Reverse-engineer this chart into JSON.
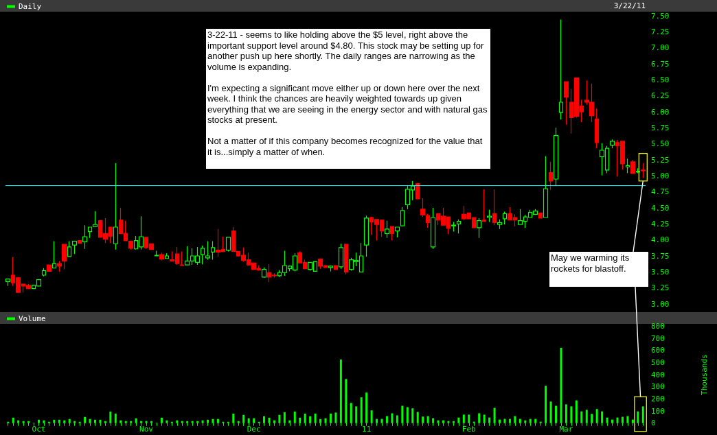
{
  "chart_data": [
    {
      "type": "candlestick",
      "legend": "top left",
      "subtitle": "3/22/11",
      "tick_labels": "y",
      "grid": false,
      "colors": [
        "#00ff00",
        "#ff0000"
      ],
      "categories": [
        null,
        null,
        null,
        null,
        null,
        null,
        null,
        null,
        null,
        null,
        null,
        null,
        null,
        null,
        null,
        null,
        null,
        null,
        null,
        null,
        null,
        null,
        null,
        null,
        null,
        null,
        null,
        null,
        null,
        null,
        null,
        null,
        null,
        null,
        null,
        null,
        null,
        null,
        null,
        null,
        null,
        null,
        null,
        null,
        null,
        null,
        null,
        null,
        null,
        null,
        null,
        null,
        null,
        null,
        null,
        null,
        null,
        null,
        null,
        null,
        null,
        null,
        null,
        null,
        null,
        null,
        null,
        null,
        null,
        null,
        null,
        null,
        null,
        null,
        null,
        null,
        null,
        null,
        null,
        null,
        null,
        null,
        null,
        null,
        null,
        null,
        null,
        null,
        null,
        null,
        null,
        null,
        null,
        null,
        null,
        null,
        null,
        null,
        null,
        null,
        null,
        null,
        null,
        null,
        null,
        null,
        null,
        null,
        null,
        null,
        null,
        null,
        null,
        null,
        null,
        null,
        null,
        null,
        null,
        null,
        null,
        null,
        null,
        null,
        null
      ],
      "series": [
        {
          "name": "Daily",
          "ohlc": [
            [
              3.35,
              3.39,
              3.28,
              3.39
            ],
            [
              3.45,
              3.73,
              3.28,
              3.33
            ],
            [
              3.41,
              3.42,
              3.18,
              3.18
            ],
            [
              3.31,
              3.32,
              3.18,
              3.28
            ],
            [
              3.29,
              3.31,
              3.24,
              3.24
            ],
            [
              3.24,
              3.3,
              3.24,
              3.29
            ],
            [
              3.28,
              3.38,
              3.28,
              3.38
            ],
            [
              3.45,
              3.56,
              3.43,
              3.52
            ],
            [
              3.61,
              3.61,
              3.51,
              3.51
            ],
            [
              3.56,
              3.98,
              3.56,
              3.63
            ],
            [
              3.63,
              3.67,
              3.5,
              3.59
            ],
            [
              3.93,
              3.93,
              3.54,
              3.67
            ],
            [
              3.74,
              3.98,
              3.74,
              3.89
            ],
            [
              3.92,
              3.98,
              3.78,
              3.98
            ],
            [
              3.99,
              3.99,
              3.94,
              3.95
            ],
            [
              3.97,
              4.23,
              3.86,
              4.05
            ],
            [
              4.13,
              4.2,
              4.03,
              4.2
            ],
            [
              4.21,
              4.45,
              4.21,
              4.24
            ],
            [
              4.3,
              4.3,
              4.04,
              4.04
            ],
            [
              4.1,
              4.34,
              3.95,
              4.01
            ],
            [
              4.2,
              4.2,
              3.95,
              4.06
            ],
            [
              3.94,
              5.2,
              3.85,
              4.2
            ],
            [
              4.31,
              4.5,
              4.09,
              4.1
            ],
            [
              4.1,
              4.3,
              3.99,
              3.99
            ],
            [
              3.98,
              3.98,
              3.85,
              3.87
            ],
            [
              3.86,
              4.06,
              3.85,
              3.99
            ],
            [
              3.89,
              4.37,
              3.85,
              4.05
            ],
            [
              4.04,
              4.04,
              3.86,
              3.88
            ],
            [
              3.94,
              3.94,
              3.85,
              3.85
            ],
            [
              3.75,
              3.83,
              3.75,
              3.76
            ],
            [
              3.77,
              3.8,
              3.68,
              3.7
            ],
            [
              3.71,
              3.79,
              3.71,
              3.75
            ],
            [
              3.69,
              3.82,
              3.67,
              3.67
            ],
            [
              3.78,
              3.89,
              3.61,
              3.63
            ],
            [
              3.61,
              3.82,
              3.6,
              3.6
            ],
            [
              3.61,
              3.9,
              3.61,
              3.67
            ],
            [
              3.67,
              3.87,
              3.61,
              3.75
            ],
            [
              3.65,
              3.89,
              3.61,
              3.75
            ],
            [
              3.77,
              3.91,
              3.62,
              3.87
            ],
            [
              3.72,
              3.98,
              3.69,
              3.75
            ],
            [
              3.81,
              3.98,
              3.69,
              3.88
            ],
            [
              3.84,
              4.17,
              3.74,
              3.81
            ],
            [
              3.85,
              4.05,
              3.81,
              3.82
            ],
            [
              3.84,
              4.04,
              3.82,
              4.04
            ],
            [
              4.14,
              4.2,
              3.82,
              3.82
            ],
            [
              3.82,
              3.82,
              3.74,
              3.75
            ],
            [
              3.76,
              3.88,
              3.66,
              3.68
            ],
            [
              3.69,
              3.8,
              3.6,
              3.61
            ],
            [
              3.64,
              3.64,
              3.54,
              3.54
            ],
            [
              3.55,
              3.6,
              3.52,
              3.53
            ],
            [
              3.42,
              3.57,
              3.41,
              3.54
            ],
            [
              3.49,
              3.62,
              3.34,
              3.42
            ],
            [
              3.45,
              3.48,
              3.41,
              3.44
            ],
            [
              3.44,
              3.53,
              3.42,
              3.49
            ],
            [
              3.49,
              3.83,
              3.44,
              3.6
            ],
            [
              3.55,
              3.6,
              3.51,
              3.59
            ],
            [
              3.53,
              3.79,
              3.51,
              3.75
            ],
            [
              3.8,
              3.82,
              3.64,
              3.64
            ],
            [
              3.65,
              3.69,
              3.54,
              3.55
            ],
            [
              3.54,
              3.65,
              3.52,
              3.65
            ],
            [
              3.51,
              3.66,
              3.51,
              3.66
            ],
            [
              3.7,
              3.71,
              3.55,
              3.59
            ],
            [
              3.6,
              3.6,
              3.57,
              3.57
            ],
            [
              3.57,
              3.6,
              3.51,
              3.59
            ],
            [
              3.6,
              3.6,
              3.54,
              3.54
            ],
            [
              3.58,
              3.94,
              3.55,
              3.88
            ],
            [
              3.93,
              3.94,
              3.46,
              3.5
            ],
            [
              3.54,
              3.72,
              3.52,
              3.69
            ],
            [
              3.66,
              3.8,
              3.59,
              3.68
            ],
            [
              3.5,
              3.95,
              3.5,
              3.75
            ],
            [
              3.92,
              4.38,
              3.74,
              4.34
            ],
            [
              4.35,
              4.36,
              4.08,
              4.28
            ],
            [
              4.32,
              4.32,
              3.99,
              4.24
            ],
            [
              4.31,
              4.31,
              4.05,
              4.14
            ],
            [
              4.1,
              4.3,
              4.03,
              4.17
            ],
            [
              4.21,
              4.21,
              3.99,
              4.1
            ],
            [
              4.14,
              4.2,
              4.04,
              4.2
            ],
            [
              4.22,
              4.51,
              4.21,
              4.46
            ],
            [
              4.55,
              4.85,
              4.48,
              4.79
            ],
            [
              4.78,
              4.92,
              4.62,
              4.84
            ],
            [
              4.88,
              4.88,
              4.64,
              4.64
            ],
            [
              4.48,
              4.65,
              4.36,
              4.39
            ],
            [
              4.38,
              4.41,
              4.19,
              4.27
            ],
            [
              3.89,
              4.5,
              3.86,
              4.35
            ],
            [
              4.41,
              4.41,
              4.23,
              4.31
            ],
            [
              4.37,
              4.5,
              4.23,
              4.23
            ],
            [
              4.36,
              4.36,
              4.09,
              4.18
            ],
            [
              4.22,
              4.28,
              4.13,
              4.23
            ],
            [
              4.25,
              4.32,
              4.1,
              4.29
            ],
            [
              4.4,
              4.53,
              4.31,
              4.33
            ],
            [
              4.42,
              4.42,
              4.33,
              4.33
            ],
            [
              4.35,
              4.35,
              4.19,
              4.19
            ],
            [
              4.19,
              4.34,
              4.03,
              4.3
            ],
            [
              4.31,
              4.79,
              4.29,
              4.29
            ],
            [
              4.35,
              4.47,
              4.28,
              4.37
            ],
            [
              4.41,
              4.79,
              4.23,
              4.27
            ],
            [
              4.24,
              4.32,
              4.17,
              4.27
            ],
            [
              4.33,
              4.44,
              4.24,
              4.41
            ],
            [
              4.41,
              4.51,
              4.31,
              4.31
            ],
            [
              4.35,
              4.4,
              4.21,
              4.31
            ],
            [
              4.24,
              4.48,
              4.24,
              4.3
            ],
            [
              4.29,
              4.39,
              4.19,
              4.36
            ],
            [
              4.35,
              4.47,
              4.35,
              4.43
            ],
            [
              4.4,
              4.48,
              4.39,
              4.45
            ],
            [
              4.42,
              4.42,
              4.34,
              4.34
            ],
            [
              4.35,
              5.31,
              4.35,
              4.8
            ],
            [
              5.05,
              5.22,
              4.78,
              4.92
            ],
            [
              4.95,
              5.75,
              4.85,
              5.63
            ],
            [
              5.99,
              7.44,
              5.88,
              6.15
            ],
            [
              6.47,
              6.47,
              5.8,
              6.23
            ],
            [
              6.15,
              6.36,
              5.66,
              5.91
            ],
            [
              6.53,
              6.53,
              5.91,
              5.93
            ],
            [
              6.09,
              6.19,
              5.84,
              6.0
            ],
            [
              6.18,
              6.49,
              6.11,
              6.15
            ],
            [
              6.15,
              6.44,
              5.84,
              5.94
            ],
            [
              5.89,
              6.05,
              5.43,
              5.52
            ],
            [
              5.3,
              5.51,
              5.01,
              5.4
            ],
            [
              5.09,
              5.47,
              5.04,
              5.43
            ],
            [
              5.48,
              5.57,
              5.43,
              5.54
            ],
            [
              5.52,
              5.56,
              4.99,
              5.47
            ],
            [
              5.54,
              5.54,
              5.1,
              5.19
            ],
            [
              5.14,
              5.27,
              5.04,
              5.16
            ],
            [
              5.22,
              5.25,
              5.04,
              5.04
            ],
            [
              5.06,
              5.12,
              5.04,
              5.07
            ],
            [
              5.09,
              5.2,
              4.97,
              5.08
            ]
          ]
        }
      ],
      "ylim": [
        3,
        7.5
      ],
      "yticks": [
        {
          "value": 3,
          "label": "3.00"
        },
        {
          "value": 3.25,
          "label": "3.25"
        },
        {
          "value": 3.5,
          "label": "3.50"
        },
        {
          "value": 3.75,
          "label": "3.75"
        },
        {
          "value": 4,
          "label": "4.00"
        },
        {
          "value": 4.25,
          "label": "4.25"
        },
        {
          "value": 4.5,
          "label": "4.50"
        },
        {
          "value": 4.75,
          "label": "4.75"
        },
        {
          "value": 5,
          "label": "5.00"
        },
        {
          "value": 5.25,
          "label": "5.25"
        },
        {
          "value": 5.5,
          "label": "5.50"
        },
        {
          "value": 5.75,
          "label": "5.75"
        },
        {
          "value": 6,
          "label": "6.00"
        },
        {
          "value": 6.25,
          "label": "6.25"
        },
        {
          "value": 6.5,
          "label": "6.50"
        },
        {
          "value": 6.75,
          "label": "6.75"
        },
        {
          "value": 7,
          "label": "7.00"
        },
        {
          "value": 7.25,
          "label": "7.25"
        },
        {
          "value": 7.5,
          "label": "7.50"
        }
      ],
      "ref_lines": [
        {
          "axis": "y",
          "value": 4.85,
          "color": "#00ffff"
        }
      ],
      "annotations": [
        "3-22-11 - seems to like holding above the $5 level, right above the important support level around $4.80. This stock may be setting up for another push up here shortly. The daily ranges are narrowing as the volume is expanding.\n\nI'm expecting a significant move either up or down here over the next week. I think the chances are heavily weighted towards up given everything that we are seeing in the energy sector and with natural gas stocks at present.\n\nNot a matter of if this company becomes recognized for the value that it is...simply a matter of when.",
        "May we warming its rockets for blastoff."
      ]
    },
    {
      "type": "bar",
      "legend": "top left",
      "ylabel": "Thousands",
      "grid": false,
      "categories": [
        null,
        null,
        null,
        null,
        null,
        null,
        "Oct",
        null,
        null,
        null,
        null,
        null,
        null,
        null,
        null,
        null,
        null,
        null,
        null,
        null,
        null,
        null,
        null,
        null,
        null,
        null,
        null,
        "Nov",
        null,
        null,
        null,
        null,
        null,
        null,
        null,
        null,
        null,
        null,
        null,
        null,
        null,
        null,
        null,
        null,
        null,
        null,
        null,
        null,
        "Dec",
        null,
        null,
        null,
        null,
        null,
        null,
        null,
        null,
        null,
        null,
        null,
        null,
        null,
        null,
        null,
        null,
        null,
        null,
        null,
        null,
        null,
        "11",
        null,
        null,
        null,
        null,
        null,
        null,
        null,
        null,
        null,
        null,
        null,
        null,
        null,
        null,
        null,
        null,
        null,
        null,
        null,
        "Feb",
        null,
        null,
        null,
        null,
        null,
        null,
        null,
        null,
        null,
        null,
        null,
        null,
        null,
        null,
        null,
        null,
        null,
        null,
        "Mar",
        null,
        null,
        null,
        null,
        null,
        null,
        null,
        null,
        null,
        null,
        null,
        null,
        null,
        null,
        null
      ],
      "series": [
        {
          "name": "Volume",
          "color": "#00ff00",
          "values": [
            11,
            45,
            23,
            17,
            17,
            3,
            28,
            23,
            11,
            28,
            28,
            23,
            34,
            17,
            11,
            51,
            34,
            28,
            28,
            17,
            96,
            79,
            23,
            17,
            17,
            40,
            17,
            17,
            17,
            3,
            45,
            23,
            11,
            23,
            17,
            17,
            17,
            17,
            23,
            28,
            34,
            34,
            11,
            11,
            79,
            17,
            68,
            40,
            40,
            11,
            57,
            45,
            23,
            68,
            91,
            23,
            96,
            45,
            79,
            57,
            79,
            34,
            40,
            79,
            87,
            525,
            364,
            167,
            138,
            213,
            252,
            105,
            35,
            35,
            58,
            81,
            64,
            143,
            132,
            122,
            93,
            54,
            58,
            41,
            23,
            23,
            17,
            17,
            46,
            70,
            70,
            12,
            81,
            70,
            46,
            126,
            29,
            35,
            35,
            58,
            35,
            23,
            35,
            35,
            12,
            308,
            178,
            143,
            622,
            155,
            138,
            188,
            97,
            110,
            76,
            116,
            97,
            46,
            29,
            46,
            52,
            58,
            29,
            97,
            138
          ]
        }
      ],
      "ylim": [
        0,
        800
      ],
      "yticks": [
        0,
        100,
        200,
        300,
        400,
        500,
        600,
        700,
        800
      ]
    }
  ]
}
